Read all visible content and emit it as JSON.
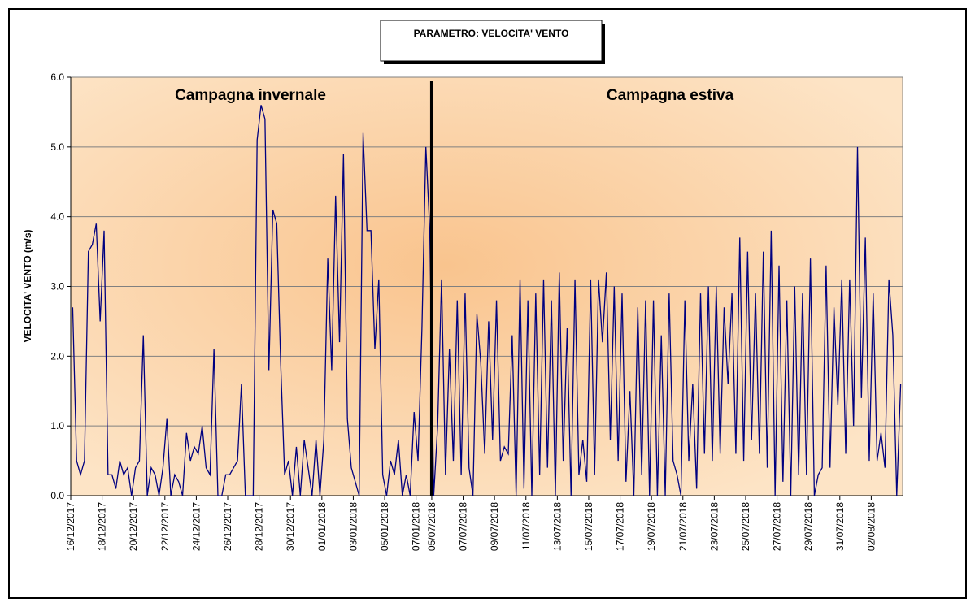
{
  "chart_data": {
    "type": "line",
    "title": "PARAMETRO: VELOCITA' VENTO",
    "y_label": "VELOCITA' VENTO (m/s)",
    "annotations": [
      {
        "text": "Campagna invernale",
        "color": "#1f1fd6"
      },
      {
        "text": "Campagna estiva",
        "color": "#ff1a1a"
      }
    ],
    "color": "#000080",
    "ylim": [
      0,
      6
    ],
    "yticks": [
      {
        "value": 0,
        "label": "0.0"
      },
      {
        "value": 1,
        "label": "1.0"
      },
      {
        "value": 2,
        "label": "2.0"
      },
      {
        "value": 3,
        "label": "3.0"
      },
      {
        "value": 4,
        "label": "4.0"
      },
      {
        "value": 5,
        "label": "5.0"
      },
      {
        "value": 6,
        "label": "6.0"
      }
    ],
    "grid": true,
    "categories": [
      "16/12/2017",
      null,
      null,
      null,
      null,
      null,
      null,
      null,
      "18/12/2017",
      null,
      null,
      null,
      null,
      null,
      null,
      null,
      "20/12/2017",
      null,
      null,
      null,
      null,
      null,
      null,
      null,
      "22/12/2017",
      null,
      null,
      null,
      null,
      null,
      null,
      null,
      "24/12/2017",
      null,
      null,
      null,
      null,
      null,
      null,
      null,
      "26/12/2017",
      null,
      null,
      null,
      null,
      null,
      null,
      null,
      "28/12/2017",
      null,
      null,
      null,
      null,
      null,
      null,
      null,
      "30/12/2017",
      null,
      null,
      null,
      null,
      null,
      null,
      null,
      "01/01/2018",
      null,
      null,
      null,
      null,
      null,
      null,
      null,
      "03/01/2018",
      null,
      null,
      null,
      null,
      null,
      null,
      null,
      "05/01/2018",
      null,
      null,
      null,
      null,
      null,
      null,
      null,
      "07/01/2018",
      null,
      null,
      null,
      "05/07/2018",
      null,
      null,
      null,
      null,
      null,
      null,
      null,
      "07/07/2018",
      null,
      null,
      null,
      null,
      null,
      null,
      null,
      "09/07/2018",
      null,
      null,
      null,
      null,
      null,
      null,
      null,
      "11/07/2018",
      null,
      null,
      null,
      null,
      null,
      null,
      null,
      "13/07/2018",
      null,
      null,
      null,
      null,
      null,
      null,
      null,
      "15/07/2018",
      null,
      null,
      null,
      null,
      null,
      null,
      null,
      "17/07/2018",
      null,
      null,
      null,
      null,
      null,
      null,
      null,
      "19/07/2018",
      null,
      null,
      null,
      null,
      null,
      null,
      null,
      "21/07/2018",
      null,
      null,
      null,
      null,
      null,
      null,
      null,
      "23/07/2018",
      null,
      null,
      null,
      null,
      null,
      null,
      null,
      "25/07/2018",
      null,
      null,
      null,
      null,
      null,
      null,
      null,
      "27/07/2018",
      null,
      null,
      null,
      null,
      null,
      null,
      null,
      "29/07/2018",
      null,
      null,
      null,
      null,
      null,
      null,
      null,
      "31/07/2018",
      null,
      null,
      null,
      null,
      null,
      null,
      null,
      "02/08/2018",
      null,
      null,
      null,
      null,
      null,
      null,
      null
    ],
    "values": [
      2.7,
      0.5,
      0.3,
      0.5,
      3.5,
      3.6,
      3.9,
      2.5,
      3.8,
      0.3,
      0.3,
      0.1,
      0.5,
      0.3,
      0.4,
      0.0,
      0.4,
      0.5,
      2.3,
      0.0,
      0.4,
      0.3,
      0.0,
      0.4,
      1.1,
      0.0,
      0.3,
      0.2,
      0.0,
      0.9,
      0.5,
      0.7,
      0.6,
      1.0,
      0.4,
      0.3,
      2.1,
      0.0,
      0.0,
      0.3,
      0.3,
      0.4,
      0.5,
      1.6,
      0.0,
      0.0,
      0.0,
      5.1,
      5.6,
      5.4,
      1.8,
      4.1,
      3.9,
      1.9,
      0.3,
      0.5,
      0.0,
      0.7,
      0.0,
      0.8,
      0.4,
      0.0,
      0.8,
      0.0,
      0.8,
      3.4,
      1.8,
      4.3,
      2.2,
      4.9,
      1.1,
      0.4,
      0.2,
      0.0,
      5.2,
      3.8,
      3.8,
      2.1,
      3.1,
      0.3,
      0.0,
      0.5,
      0.3,
      0.8,
      0.0,
      0.3,
      0.0,
      1.2,
      0.5,
      2.4,
      5.0,
      3.8,
      0.0,
      1.0,
      3.1,
      0.3,
      2.1,
      0.5,
      2.8,
      0.3,
      2.9,
      0.4,
      0.0,
      2.6,
      1.9,
      0.6,
      2.5,
      0.8,
      2.8,
      0.5,
      0.7,
      0.6,
      2.3,
      0.0,
      3.1,
      0.1,
      2.8,
      0.0,
      2.9,
      0.3,
      3.1,
      0.4,
      2.8,
      0.0,
      3.2,
      0.5,
      2.4,
      0.0,
      3.1,
      0.3,
      0.8,
      0.2,
      3.1,
      0.3,
      3.1,
      2.2,
      3.2,
      0.8,
      3.0,
      0.5,
      2.9,
      0.2,
      1.5,
      0.0,
      2.7,
      0.3,
      2.8,
      0.0,
      2.8,
      0.0,
      2.3,
      0.0,
      2.9,
      0.5,
      0.3,
      0.0,
      2.8,
      0.5,
      1.6,
      0.1,
      2.9,
      0.6,
      3.0,
      0.5,
      3.0,
      0.6,
      2.7,
      1.6,
      2.9,
      0.6,
      3.7,
      0.5,
      3.5,
      0.8,
      2.9,
      0.6,
      3.5,
      0.4,
      3.8,
      0.0,
      3.3,
      0.2,
      2.8,
      0.0,
      3.0,
      0.3,
      2.9,
      0.3,
      3.4,
      0.0,
      0.3,
      0.4,
      3.3,
      0.4,
      2.7,
      1.3,
      3.1,
      0.6,
      3.1,
      1.0,
      5.0,
      1.4,
      3.7,
      0.5,
      2.9,
      0.5,
      0.9,
      0.4,
      3.1,
      2.3,
      0.0,
      1.6
    ]
  }
}
